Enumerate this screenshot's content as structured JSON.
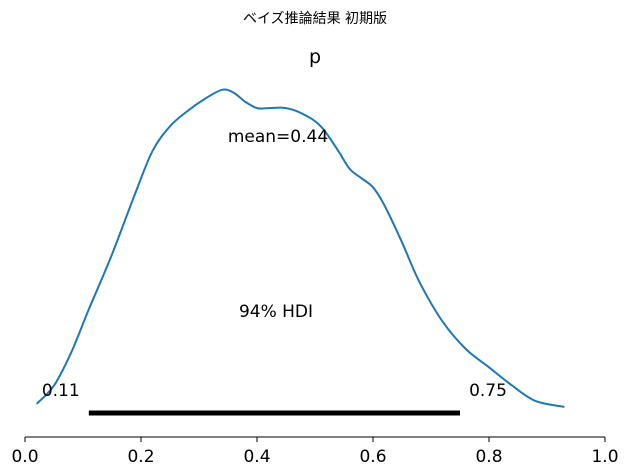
{
  "chart_data": {
    "type": "area",
    "suptitle": "ベイズ推論結果 初期版",
    "title": "p",
    "series": [
      {
        "color": "#1f77b4",
        "x": [
          0.02,
          0.05,
          0.08,
          0.11,
          0.15,
          0.19,
          0.22,
          0.25,
          0.28,
          0.31,
          0.34,
          0.36,
          0.38,
          0.4,
          0.42,
          0.45,
          0.48,
          0.51,
          0.54,
          0.56,
          0.58,
          0.6,
          0.62,
          0.65,
          0.68,
          0.72,
          0.76,
          0.8,
          0.84,
          0.88,
          0.93
        ],
        "y": [
          0.02,
          0.08,
          0.19,
          0.33,
          0.51,
          0.71,
          0.85,
          0.93,
          0.98,
          1.02,
          1.05,
          1.04,
          1.01,
          0.99,
          0.99,
          0.99,
          0.97,
          0.93,
          0.85,
          0.79,
          0.76,
          0.73,
          0.67,
          0.55,
          0.42,
          0.29,
          0.2,
          0.14,
          0.08,
          0.03,
          0.01
        ]
      }
    ],
    "mean_label": "mean=0.44",
    "hdi_label": "94% HDI",
    "hdi": {
      "low": 0.11,
      "high": 0.75,
      "low_label": "0.11",
      "high_label": "0.75",
      "color": "#000000"
    },
    "xlim": [
      0.0,
      1.0
    ],
    "xticks": [
      0.0,
      0.2,
      0.4,
      0.6,
      0.8,
      1.0
    ],
    "xtick_labels": [
      "0.0",
      "0.2",
      "0.4",
      "0.6",
      "0.8",
      "1.0"
    ],
    "grid": false
  }
}
